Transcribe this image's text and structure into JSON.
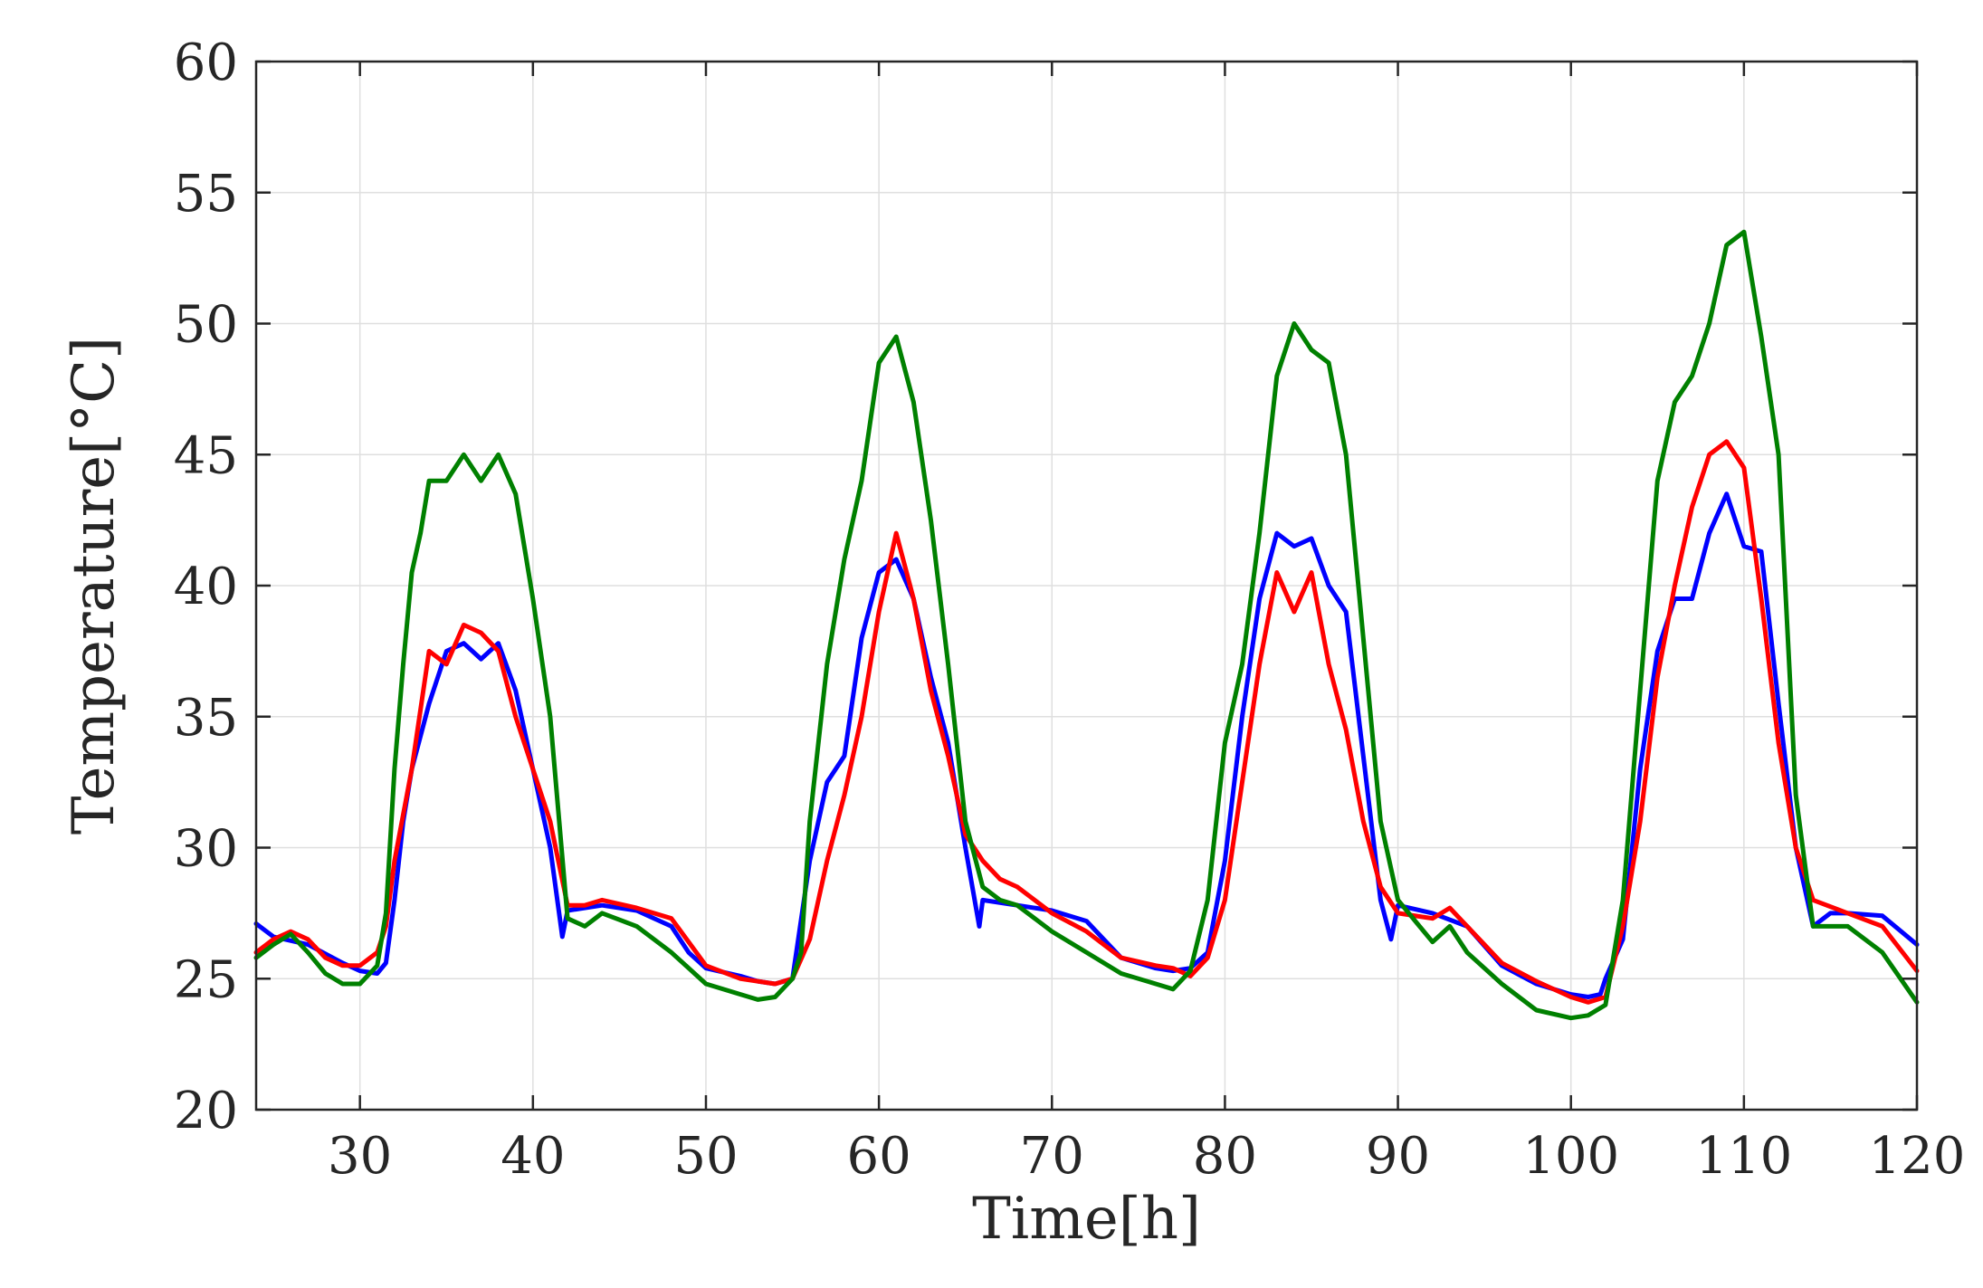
{
  "chart_data": {
    "type": "line",
    "title": "",
    "xlabel": "Time[h]",
    "ylabel": "Temperature[°C]",
    "xlim": [
      24,
      120
    ],
    "ylim": [
      20,
      60
    ],
    "xticks": [
      30,
      40,
      50,
      60,
      70,
      80,
      90,
      100,
      110,
      120
    ],
    "yticks": [
      20,
      25,
      30,
      35,
      40,
      45,
      50,
      55,
      60
    ],
    "grid": true,
    "legend": "none",
    "series": [
      {
        "name": "blue",
        "color": "#0000ff",
        "x": [
          24,
          25,
          27,
          29,
          30,
          31,
          31.5,
          32,
          32.5,
          33,
          34,
          35,
          36,
          37,
          38,
          39,
          40,
          41,
          41.7,
          42,
          44,
          46,
          48,
          49,
          50,
          52,
          53,
          54,
          55,
          56,
          57,
          58,
          59,
          60,
          61,
          62,
          63,
          64,
          65,
          65.8,
          66,
          68,
          70,
          72,
          74,
          76,
          77,
          78,
          79,
          80,
          81,
          82,
          83,
          84,
          85,
          86,
          87,
          88,
          89,
          89.6,
          90,
          92,
          94,
          96,
          98,
          100,
          101,
          101.7,
          102,
          103,
          104,
          105,
          106,
          107,
          108,
          109,
          110,
          111,
          112,
          113,
          114,
          115,
          116,
          118,
          120
        ],
        "y": [
          27.1,
          26.6,
          26.3,
          25.6,
          25.3,
          25.2,
          25.6,
          28,
          31,
          33,
          35.5,
          37.5,
          37.8,
          37.2,
          37.8,
          36,
          33,
          30,
          26.6,
          27.6,
          27.8,
          27.6,
          27.0,
          26.0,
          25.4,
          25.1,
          24.9,
          24.8,
          25.0,
          29.5,
          32.5,
          33.5,
          38,
          40.5,
          41.0,
          39.5,
          36.5,
          34.0,
          30.0,
          27.0,
          28.0,
          27.8,
          27.6,
          27.2,
          25.8,
          25.4,
          25.3,
          25.4,
          26.0,
          29.5,
          35.0,
          39.5,
          42.0,
          41.5,
          41.8,
          40.0,
          39.0,
          33.5,
          28.0,
          26.5,
          27.8,
          27.5,
          27.0,
          25.5,
          24.8,
          24.4,
          24.3,
          24.4,
          25.0,
          26.5,
          33.0,
          37.5,
          39.5,
          39.5,
          42.0,
          43.5,
          41.5,
          41.3,
          35.5,
          30.0,
          27.0,
          27.5,
          27.5,
          27.4,
          26.3
        ]
      },
      {
        "name": "red",
        "color": "#ff0000",
        "x": [
          24,
          25,
          26,
          27,
          28,
          29,
          30,
          31,
          31.5,
          32,
          33,
          34,
          35,
          36,
          37,
          38,
          39,
          40,
          41,
          42,
          43,
          44,
          46,
          48,
          50,
          52,
          54,
          55,
          56,
          57,
          58,
          59,
          60,
          61,
          62,
          63,
          64,
          65,
          66,
          67,
          68,
          70,
          72,
          74,
          76,
          77,
          78,
          79,
          80,
          81,
          82,
          83,
          84,
          85,
          86,
          87,
          88,
          89,
          90,
          92,
          93,
          94,
          96,
          98,
          100,
          101,
          102,
          103,
          104,
          105,
          106,
          107,
          108,
          109,
          110,
          111,
          112,
          113,
          114,
          116,
          118,
          120
        ],
        "y": [
          26.0,
          26.5,
          26.8,
          26.5,
          25.8,
          25.5,
          25.5,
          26.0,
          27.0,
          29.5,
          33.0,
          37.5,
          37.0,
          38.5,
          38.2,
          37.5,
          35.0,
          33.0,
          31.0,
          27.8,
          27.8,
          28.0,
          27.7,
          27.3,
          25.5,
          25.0,
          24.8,
          25.0,
          26.5,
          29.5,
          32.0,
          35.0,
          39.0,
          42.0,
          39.5,
          36.0,
          33.5,
          30.5,
          29.5,
          28.8,
          28.5,
          27.5,
          26.8,
          25.8,
          25.5,
          25.4,
          25.1,
          25.8,
          28.0,
          32.5,
          37.0,
          40.5,
          39.0,
          40.5,
          37.0,
          34.5,
          31.0,
          28.5,
          27.5,
          27.3,
          27.7,
          27.0,
          25.6,
          24.9,
          24.3,
          24.1,
          24.3,
          27.0,
          31.0,
          36.5,
          40.0,
          43.0,
          45.0,
          45.5,
          44.5,
          39.5,
          34.0,
          30.0,
          28.0,
          27.5,
          27.0,
          25.3
        ]
      },
      {
        "name": "green",
        "color": "#008000",
        "x": [
          24,
          25,
          26,
          27,
          28,
          29,
          30,
          31,
          31.5,
          32,
          32.5,
          33,
          33.5,
          34,
          35,
          36,
          37,
          38,
          39,
          40,
          41,
          42,
          43,
          44,
          46,
          48,
          50,
          52,
          53,
          54,
          55,
          55.5,
          56,
          57,
          58,
          59,
          60,
          61,
          62,
          63,
          64,
          65,
          66,
          67,
          68,
          70,
          72,
          74,
          76,
          77,
          78,
          79,
          80,
          81,
          82,
          83,
          84,
          85,
          86,
          87,
          88,
          89,
          90,
          91,
          92,
          93,
          94,
          96,
          98,
          100,
          101,
          102,
          103,
          104,
          105,
          106,
          107,
          108,
          109,
          110,
          111,
          112,
          113,
          114,
          116,
          118,
          120
        ],
        "y": [
          25.8,
          26.3,
          26.7,
          26.0,
          25.2,
          24.8,
          24.8,
          25.5,
          27.5,
          33.0,
          37.0,
          40.5,
          42.0,
          44.0,
          44.0,
          45.0,
          44.0,
          45.0,
          43.5,
          39.5,
          35.0,
          27.3,
          27.0,
          27.5,
          27.0,
          26.0,
          24.8,
          24.4,
          24.2,
          24.3,
          25.0,
          26.0,
          31.0,
          37.0,
          41.0,
          44.0,
          48.5,
          49.5,
          47.0,
          42.5,
          37.0,
          31.0,
          28.5,
          28.0,
          27.8,
          26.8,
          26.0,
          25.2,
          24.8,
          24.6,
          25.3,
          28.0,
          34.0,
          37.0,
          42.0,
          48.0,
          50.0,
          49.0,
          48.5,
          45.0,
          38.0,
          31.0,
          28.0,
          27.2,
          26.4,
          27.0,
          26.0,
          24.8,
          23.8,
          23.5,
          23.6,
          24.0,
          28.0,
          36.0,
          44.0,
          47.0,
          48.0,
          50.0,
          53.0,
          53.5,
          49.5,
          45.0,
          32.0,
          27.0,
          27.0,
          26.0,
          24.1
        ]
      }
    ]
  }
}
